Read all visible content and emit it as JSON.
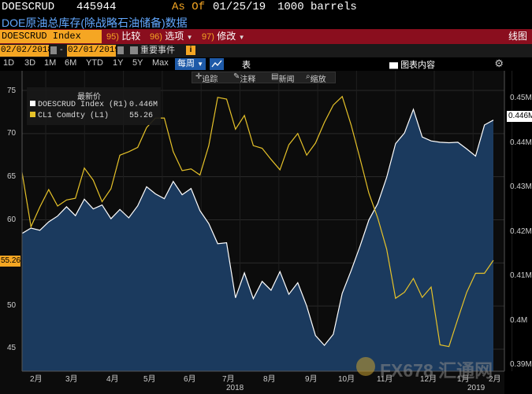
{
  "header": {
    "ticker": "DOESCRUD",
    "value": "445944",
    "as_of_label": "As Of",
    "as_of_date": "01/25/19",
    "units": "1000 barrels"
  },
  "title": "DOE原油总库存(除战略石油储备)数据",
  "toolbar": {
    "security": "DOESCRUD Index",
    "compare": {
      "num": "95)",
      "label": "比较"
    },
    "options": {
      "num": "96)",
      "label": "选项"
    },
    "edit": {
      "num": "97)",
      "label": "修改"
    },
    "view": "线图"
  },
  "dates": {
    "start": "02/02/2018",
    "end": "02/01/2019",
    "events_label": "重要事件",
    "info": "i"
  },
  "ranges": [
    "1D",
    "3D",
    "1M",
    "6M",
    "YTD",
    "1Y",
    "5Y",
    "Max"
  ],
  "range_active": "每周",
  "table_label": "表",
  "content_label": "图表内容",
  "annotations": {
    "track": "追踪",
    "annotate": "注释",
    "news": "新闻",
    "zoom": "缩放"
  },
  "legend": {
    "title": "最新价",
    "items": [
      {
        "name": "DOESCRUD Index  (R1)",
        "value": "0.446M",
        "color": "#ffffff"
      },
      {
        "name": "CL1 Comdty  (L1)",
        "value": "55.26",
        "color": "#e6c229"
      }
    ]
  },
  "flags": {
    "left": "55.26",
    "right": "0.446M"
  },
  "chart_data": {
    "type": "line",
    "x_tick_labels": [
      "2月",
      "3月",
      "4月",
      "5月",
      "6月",
      "7月",
      "8月",
      "9月",
      "10月",
      "11月",
      "12月",
      "1月",
      "2月"
    ],
    "x_year_labels": [
      "2018",
      "2019"
    ],
    "y_left": {
      "ticks": [
        "45",
        "50",
        "55",
        "60",
        "65",
        "70",
        "75"
      ],
      "range": [
        42,
        77
      ]
    },
    "y_right": {
      "ticks": [
        "0.39M",
        "0.4M",
        "0.41M",
        "0.42M",
        "0.43M",
        "0.44M",
        "0.45M"
      ],
      "range": [
        0.3885,
        0.4545
      ]
    },
    "series": [
      {
        "name": "DOESCRUD Index (R1)",
        "axis": "right",
        "color": "#ffffff",
        "fill": "#1b3a5e",
        "values": [
          0.4196,
          0.4208,
          0.4203,
          0.4222,
          0.4235,
          0.4256,
          0.4236,
          0.4273,
          0.4251,
          0.426,
          0.4229,
          0.425,
          0.4231,
          0.4258,
          0.4301,
          0.4285,
          0.4274,
          0.4313,
          0.4283,
          0.4297,
          0.4247,
          0.4218,
          0.4173,
          0.4175,
          0.4051,
          0.4107,
          0.4049,
          0.4088,
          0.4068,
          0.411,
          0.4059,
          0.4085,
          0.4033,
          0.3966,
          0.3944,
          0.3969,
          0.4061,
          0.4112,
          0.4167,
          0.4226,
          0.4263,
          0.4322,
          0.4398,
          0.4422,
          0.4475,
          0.4413,
          0.4404,
          0.4401,
          0.44,
          0.4401,
          0.4386,
          0.437,
          0.444,
          0.4451
        ]
      },
      {
        "name": "CL1 Comdty (L1)",
        "axis": "left",
        "color": "#e6c229",
        "values": [
          65.5,
          59.2,
          61.5,
          63.5,
          61.6,
          62.3,
          62.5,
          66.0,
          64.6,
          62.1,
          63.6,
          67.5,
          67.9,
          68.4,
          70.7,
          71.8,
          71.8,
          67.9,
          65.7,
          65.9,
          65.2,
          68.6,
          74.2,
          74.0,
          70.5,
          72.1,
          68.6,
          68.3,
          67.0,
          65.8,
          68.7,
          70.0,
          67.5,
          68.9,
          71.3,
          73.3,
          74.3,
          71.0,
          67.1,
          63.1,
          60.2,
          56.6,
          50.9,
          51.6,
          53.2,
          51.0,
          52.2,
          45.5,
          45.3,
          48.5,
          51.6,
          53.8,
          53.8,
          55.3
        ]
      }
    ]
  },
  "watermark": "FX678 汇通网"
}
